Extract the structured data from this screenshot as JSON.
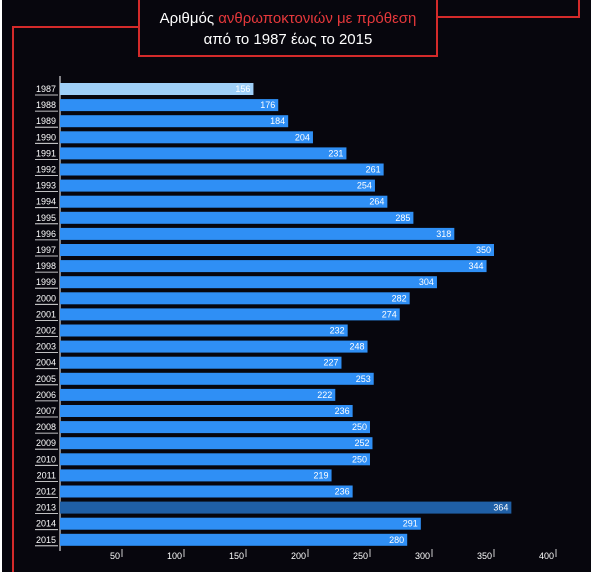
{
  "title": {
    "prefix": "Αριθμός ",
    "highlight": "ανθρωποκτονιών με πρόθεση",
    "line2": "από το 1987 έως το 2015"
  },
  "colors": {
    "background": "#07060d",
    "frame": "#d42a2a",
    "bar": "#2f8ff5",
    "bar_first": "#9fcff7",
    "bar_highlight": "#1f5fa6",
    "accent_text": "#e5383b"
  },
  "chart_data": {
    "type": "bar",
    "orientation": "horizontal",
    "categories": [
      "1987",
      "1988",
      "1989",
      "1990",
      "1991",
      "1992",
      "1993",
      "1994",
      "1995",
      "1996",
      "1997",
      "1998",
      "1999",
      "2000",
      "2001",
      "2002",
      "2003",
      "2004",
      "2005",
      "2006",
      "2007",
      "2008",
      "2009",
      "2010",
      "2011",
      "2012",
      "2013",
      "2014",
      "2015"
    ],
    "values": [
      156,
      176,
      184,
      204,
      231,
      261,
      254,
      264,
      285,
      318,
      350,
      344,
      304,
      282,
      274,
      232,
      248,
      227,
      253,
      222,
      236,
      250,
      252,
      250,
      219,
      236,
      364,
      291,
      280
    ],
    "value_labels": [
      "156",
      "176",
      "184",
      "204",
      "231",
      "261",
      "254",
      "264",
      "285",
      "318",
      "350",
      "344",
      "304",
      "282",
      "274",
      "232",
      "248",
      "227",
      "253",
      "222",
      "236",
      "250",
      "252",
      "250",
      "219",
      "236",
      "364",
      "291",
      "280"
    ],
    "xticks": [
      "50",
      "100",
      "150",
      "200",
      "250",
      "300",
      "350",
      "400"
    ],
    "xtick_values": [
      50,
      100,
      150,
      200,
      250,
      300,
      350,
      400
    ],
    "xlim": [
      0,
      400
    ],
    "grid": false
  }
}
